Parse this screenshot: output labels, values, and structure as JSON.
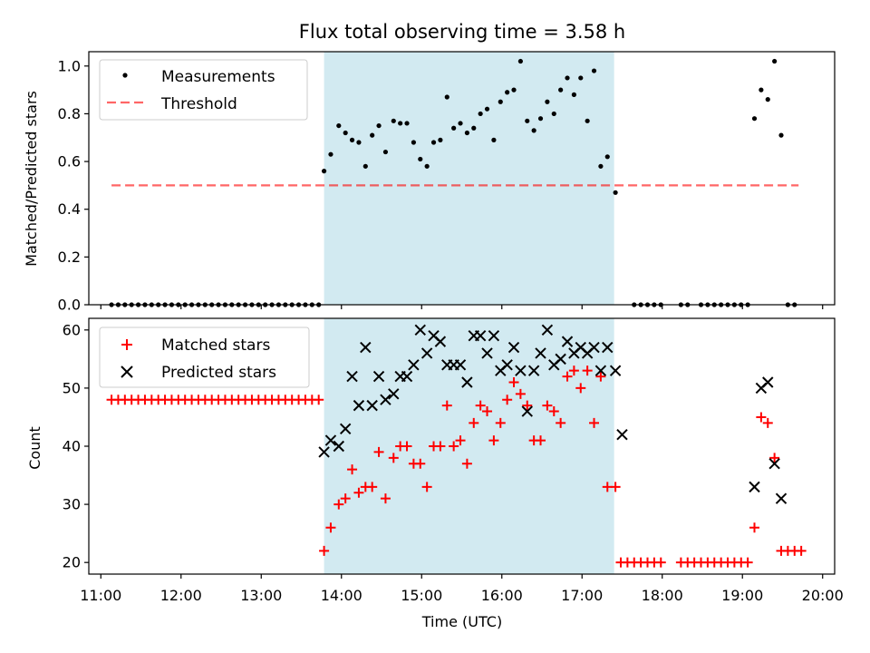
{
  "title": "Flux total observing time = 3.58 h",
  "colors": {
    "shade": "#add8e6",
    "threshold": "#ff0000",
    "matched": "#ff0000",
    "predicted": "#000000",
    "measurements": "#000000"
  },
  "chart_data": [
    {
      "type": "scatter",
      "ylabel": "Matched/Predicted stars",
      "ylim": [
        0,
        1.06
      ],
      "yticks": [
        0.0,
        0.2,
        0.4,
        0.6,
        0.8,
        1.0
      ],
      "ytick_labels": [
        "0.0",
        "0.2",
        "0.4",
        "0.6",
        "0.8",
        "1.0"
      ],
      "observing_window": [
        "13:47",
        "17:24"
      ],
      "legend": {
        "placement": "upper-left",
        "entries": [
          "Measurements",
          "Threshold"
        ]
      },
      "threshold": {
        "name": "Threshold",
        "value": 0.5,
        "x_range": [
          "11:08",
          "19:42"
        ]
      },
      "series": [
        {
          "name": "Measurements",
          "points": [
            [
              "11:08",
              0
            ],
            [
              "11:13",
              0
            ],
            [
              "11:18",
              0
            ],
            [
              "11:23",
              0
            ],
            [
              "11:28",
              0
            ],
            [
              "11:33",
              0
            ],
            [
              "11:38",
              0
            ],
            [
              "11:43",
              0
            ],
            [
              "11:48",
              0
            ],
            [
              "11:53",
              0
            ],
            [
              "11:58",
              0
            ],
            [
              "12:03",
              0
            ],
            [
              "12:08",
              0
            ],
            [
              "12:13",
              0
            ],
            [
              "12:18",
              0
            ],
            [
              "12:23",
              0
            ],
            [
              "12:28",
              0
            ],
            [
              "12:33",
              0
            ],
            [
              "12:38",
              0
            ],
            [
              "12:43",
              0
            ],
            [
              "12:48",
              0
            ],
            [
              "12:53",
              0
            ],
            [
              "12:58",
              0
            ],
            [
              "13:03",
              0
            ],
            [
              "13:08",
              0
            ],
            [
              "13:13",
              0
            ],
            [
              "13:18",
              0
            ],
            [
              "13:23",
              0
            ],
            [
              "13:28",
              0
            ],
            [
              "13:33",
              0
            ],
            [
              "13:38",
              0
            ],
            [
              "13:43",
              0
            ],
            [
              "13:47",
              0.56
            ],
            [
              "13:52",
              0.63
            ],
            [
              "13:58",
              0.75
            ],
            [
              "14:03",
              0.72
            ],
            [
              "14:08",
              0.69
            ],
            [
              "14:13",
              0.68
            ],
            [
              "14:18",
              0.58
            ],
            [
              "14:23",
              0.71
            ],
            [
              "14:28",
              0.75
            ],
            [
              "14:33",
              0.64
            ],
            [
              "14:39",
              0.77
            ],
            [
              "14:44",
              0.76
            ],
            [
              "14:49",
              0.76
            ],
            [
              "14:54",
              0.68
            ],
            [
              "14:59",
              0.61
            ],
            [
              "15:04",
              0.58
            ],
            [
              "15:09",
              0.68
            ],
            [
              "15:14",
              0.69
            ],
            [
              "15:19",
              0.87
            ],
            [
              "15:24",
              0.74
            ],
            [
              "15:29",
              0.76
            ],
            [
              "15:34",
              0.72
            ],
            [
              "15:39",
              0.74
            ],
            [
              "15:44",
              0.8
            ],
            [
              "15:49",
              0.82
            ],
            [
              "15:54",
              0.69
            ],
            [
              "15:59",
              0.85
            ],
            [
              "16:04",
              0.89
            ],
            [
              "16:09",
              0.9
            ],
            [
              "16:14",
              1.02
            ],
            [
              "16:19",
              0.77
            ],
            [
              "16:24",
              0.73
            ],
            [
              "16:29",
              0.78
            ],
            [
              "16:34",
              0.85
            ],
            [
              "16:39",
              0.8
            ],
            [
              "16:44",
              0.9
            ],
            [
              "16:49",
              0.95
            ],
            [
              "16:54",
              0.88
            ],
            [
              "16:59",
              0.95
            ],
            [
              "17:04",
              0.77
            ],
            [
              "17:09",
              0.98
            ],
            [
              "17:14",
              0.58
            ],
            [
              "17:19",
              0.62
            ],
            [
              "17:25",
              0.47
            ],
            [
              "17:39",
              0
            ],
            [
              "17:44",
              0
            ],
            [
              "17:49",
              0
            ],
            [
              "17:54",
              0
            ],
            [
              "17:59",
              0
            ],
            [
              "18:14",
              0
            ],
            [
              "18:19",
              0
            ],
            [
              "18:29",
              0
            ],
            [
              "18:34",
              0
            ],
            [
              "18:39",
              0
            ],
            [
              "18:44",
              0
            ],
            [
              "18:49",
              0
            ],
            [
              "18:54",
              0
            ],
            [
              "18:59",
              0
            ],
            [
              "19:04",
              0
            ],
            [
              "19:09",
              0.78
            ],
            [
              "19:14",
              0.9
            ],
            [
              "19:19",
              0.86
            ],
            [
              "19:24",
              1.02
            ],
            [
              "19:29",
              0.71
            ],
            [
              "19:34",
              0
            ],
            [
              "19:39",
              0
            ]
          ]
        }
      ]
    },
    {
      "type": "scatter",
      "xlabel": "Time (UTC)",
      "ylabel": "Count",
      "ylim": [
        18,
        62
      ],
      "yticks": [
        20,
        30,
        40,
        50,
        60
      ],
      "ytick_labels": [
        "20",
        "30",
        "40",
        "50",
        "60"
      ],
      "xlim": [
        "10:51",
        "20:09"
      ],
      "xticks": [
        "11:00",
        "12:00",
        "13:00",
        "14:00",
        "15:00",
        "16:00",
        "17:00",
        "18:00",
        "19:00",
        "20:00"
      ],
      "observing_window": [
        "13:47",
        "17:24"
      ],
      "legend": {
        "placement": "upper-left",
        "entries": [
          "Matched stars",
          "Predicted stars"
        ]
      },
      "series": [
        {
          "name": "Matched stars",
          "marker": "+",
          "points": [
            [
              "11:08",
              48
            ],
            [
              "11:13",
              48
            ],
            [
              "11:18",
              48
            ],
            [
              "11:23",
              48
            ],
            [
              "11:28",
              48
            ],
            [
              "11:33",
              48
            ],
            [
              "11:38",
              48
            ],
            [
              "11:43",
              48
            ],
            [
              "11:48",
              48
            ],
            [
              "11:53",
              48
            ],
            [
              "11:58",
              48
            ],
            [
              "12:03",
              48
            ],
            [
              "12:08",
              48
            ],
            [
              "12:13",
              48
            ],
            [
              "12:18",
              48
            ],
            [
              "12:23",
              48
            ],
            [
              "12:28",
              48
            ],
            [
              "12:33",
              48
            ],
            [
              "12:38",
              48
            ],
            [
              "12:43",
              48
            ],
            [
              "12:48",
              48
            ],
            [
              "12:53",
              48
            ],
            [
              "12:58",
              48
            ],
            [
              "13:03",
              48
            ],
            [
              "13:08",
              48
            ],
            [
              "13:13",
              48
            ],
            [
              "13:18",
              48
            ],
            [
              "13:23",
              48
            ],
            [
              "13:28",
              48
            ],
            [
              "13:33",
              48
            ],
            [
              "13:38",
              48
            ],
            [
              "13:43",
              48
            ],
            [
              "13:47",
              22
            ],
            [
              "13:52",
              26
            ],
            [
              "13:58",
              30
            ],
            [
              "14:03",
              31
            ],
            [
              "14:08",
              36
            ],
            [
              "14:13",
              32
            ],
            [
              "14:18",
              33
            ],
            [
              "14:23",
              33
            ],
            [
              "14:28",
              39
            ],
            [
              "14:33",
              31
            ],
            [
              "14:39",
              38
            ],
            [
              "14:44",
              40
            ],
            [
              "14:49",
              40
            ],
            [
              "14:54",
              37
            ],
            [
              "14:59",
              37
            ],
            [
              "15:04",
              33
            ],
            [
              "15:09",
              40
            ],
            [
              "15:14",
              40
            ],
            [
              "15:19",
              47
            ],
            [
              "15:24",
              40
            ],
            [
              "15:29",
              41
            ],
            [
              "15:34",
              37
            ],
            [
              "15:39",
              44
            ],
            [
              "15:44",
              47
            ],
            [
              "15:49",
              46
            ],
            [
              "15:54",
              41
            ],
            [
              "15:59",
              44
            ],
            [
              "16:04",
              48
            ],
            [
              "16:09",
              51
            ],
            [
              "16:14",
              49
            ],
            [
              "16:19",
              47
            ],
            [
              "16:24",
              41
            ],
            [
              "16:29",
              41
            ],
            [
              "16:34",
              47
            ],
            [
              "16:39",
              46
            ],
            [
              "16:44",
              44
            ],
            [
              "16:49",
              52
            ],
            [
              "16:54",
              53
            ],
            [
              "16:59",
              50
            ],
            [
              "17:04",
              53
            ],
            [
              "17:09",
              44
            ],
            [
              "17:14",
              52
            ],
            [
              "17:19",
              33
            ],
            [
              "17:25",
              33
            ],
            [
              "17:29",
              20
            ],
            [
              "17:34",
              20
            ],
            [
              "17:39",
              20
            ],
            [
              "17:44",
              20
            ],
            [
              "17:49",
              20
            ],
            [
              "17:54",
              20
            ],
            [
              "17:59",
              20
            ],
            [
              "18:14",
              20
            ],
            [
              "18:19",
              20
            ],
            [
              "18:24",
              20
            ],
            [
              "18:29",
              20
            ],
            [
              "18:34",
              20
            ],
            [
              "18:39",
              20
            ],
            [
              "18:44",
              20
            ],
            [
              "18:49",
              20
            ],
            [
              "18:54",
              20
            ],
            [
              "18:59",
              20
            ],
            [
              "19:04",
              20
            ],
            [
              "19:09",
              26
            ],
            [
              "19:14",
              45
            ],
            [
              "19:19",
              44
            ],
            [
              "19:24",
              38
            ],
            [
              "19:29",
              22
            ],
            [
              "19:34",
              22
            ],
            [
              "19:39",
              22
            ],
            [
              "19:44",
              22
            ]
          ]
        },
        {
          "name": "Predicted stars",
          "marker": "x",
          "points": [
            [
              "13:47",
              39
            ],
            [
              "13:52",
              41
            ],
            [
              "13:58",
              40
            ],
            [
              "14:03",
              43
            ],
            [
              "14:08",
              52
            ],
            [
              "14:13",
              47
            ],
            [
              "14:18",
              57
            ],
            [
              "14:23",
              47
            ],
            [
              "14:28",
              52
            ],
            [
              "14:33",
              48
            ],
            [
              "14:39",
              49
            ],
            [
              "14:44",
              52
            ],
            [
              "14:49",
              52
            ],
            [
              "14:54",
              54
            ],
            [
              "14:59",
              60
            ],
            [
              "15:04",
              56
            ],
            [
              "15:09",
              59
            ],
            [
              "15:14",
              58
            ],
            [
              "15:19",
              54
            ],
            [
              "15:24",
              54
            ],
            [
              "15:29",
              54
            ],
            [
              "15:34",
              51
            ],
            [
              "15:39",
              59
            ],
            [
              "15:44",
              59
            ],
            [
              "15:49",
              56
            ],
            [
              "15:54",
              59
            ],
            [
              "15:59",
              53
            ],
            [
              "16:04",
              54
            ],
            [
              "16:09",
              57
            ],
            [
              "16:14",
              53
            ],
            [
              "16:19",
              46
            ],
            [
              "16:24",
              53
            ],
            [
              "16:29",
              56
            ],
            [
              "16:34",
              60
            ],
            [
              "16:39",
              54
            ],
            [
              "16:44",
              55
            ],
            [
              "16:49",
              58
            ],
            [
              "16:54",
              56
            ],
            [
              "16:59",
              57
            ],
            [
              "17:04",
              56
            ],
            [
              "17:09",
              57
            ],
            [
              "17:14",
              53
            ],
            [
              "17:19",
              57
            ],
            [
              "17:25",
              53
            ],
            [
              "17:30",
              42
            ],
            [
              "19:09",
              33
            ],
            [
              "19:14",
              50
            ],
            [
              "19:19",
              51
            ],
            [
              "19:24",
              37
            ],
            [
              "19:29",
              31
            ]
          ]
        }
      ]
    }
  ]
}
